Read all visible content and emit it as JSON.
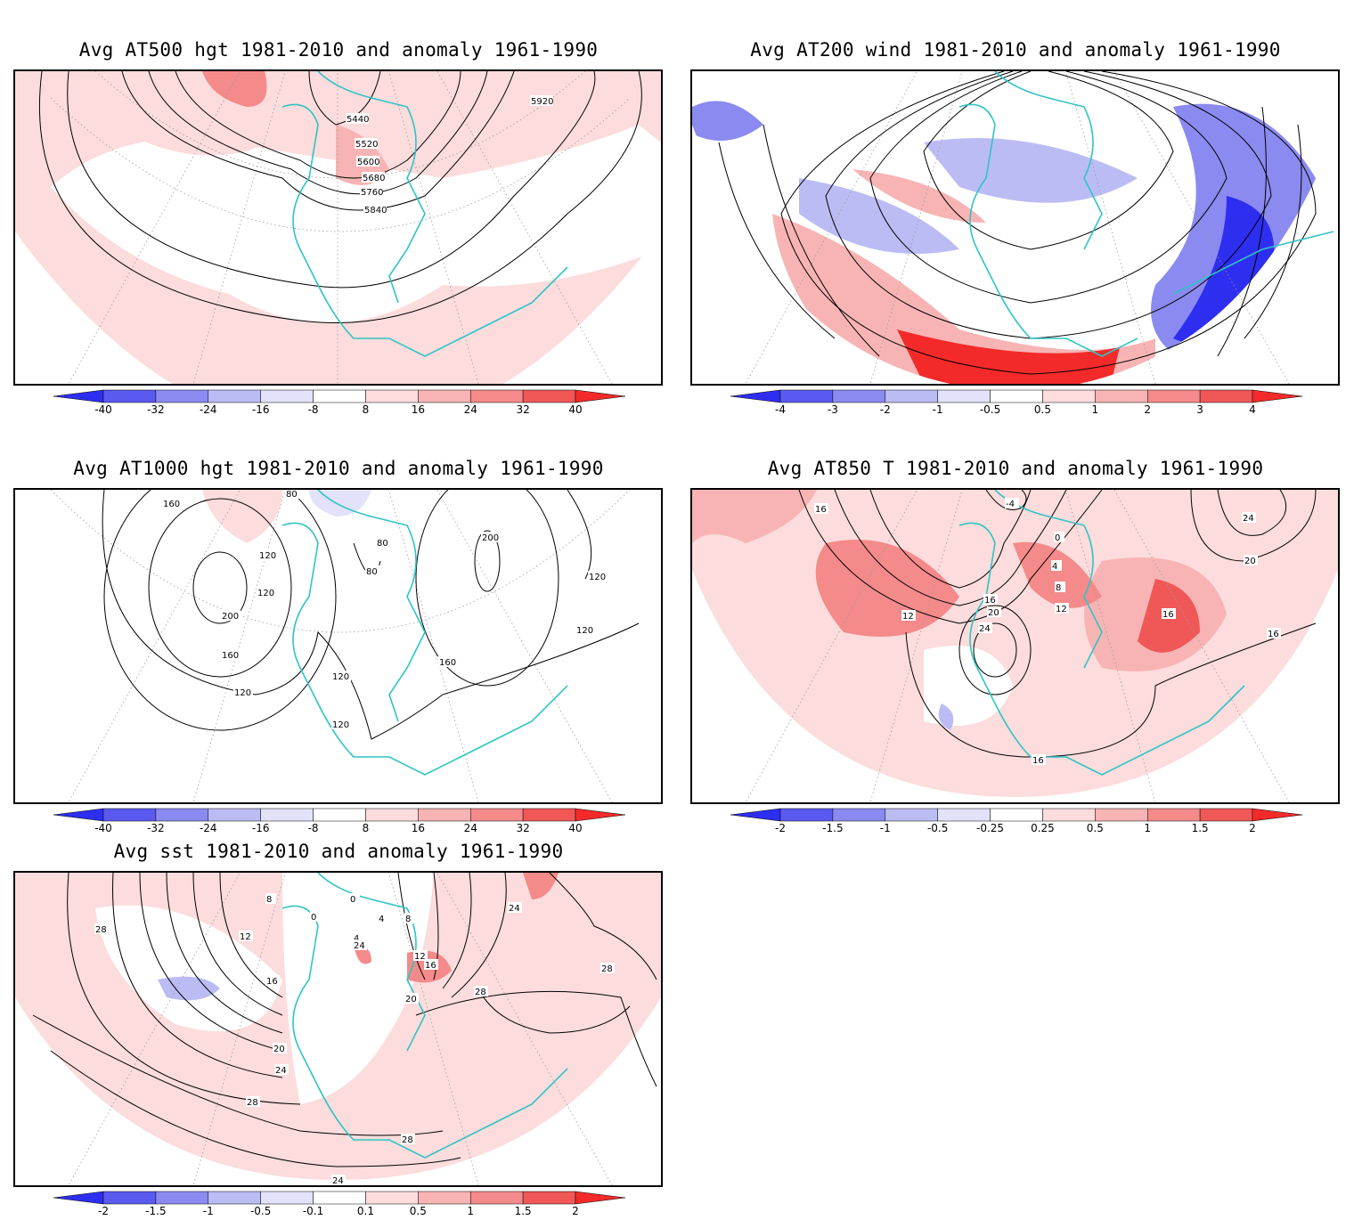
{
  "colors": {
    "neg": [
      "#2e2ef0",
      "#5a5af0",
      "#8a8af0",
      "#bcbcf4",
      "#e2e2fa"
    ],
    "pos": [
      "#fcdcdc",
      "#f8b4b4",
      "#f48a8a",
      "#f05858",
      "#f42a2a"
    ],
    "coast": "#2ec4c4"
  },
  "panels": [
    {
      "id": "at500",
      "title": "Avg AT500 hgt 1981-2010 and anomaly 1961-1990",
      "contour_labels": [
        "5440",
        "5520",
        "5600",
        "5680",
        "5760",
        "5840",
        "5920"
      ],
      "colorbar_labels": [
        "-40",
        "-32",
        "-24",
        "-16",
        "-8",
        "8",
        "16",
        "24",
        "32",
        "40"
      ]
    },
    {
      "id": "at200",
      "title": "Avg AT200 wind 1981-2010 and anomaly 1961-1990",
      "contour_labels": [],
      "colorbar_labels": [
        "-4",
        "-3",
        "-2",
        "-1",
        "-0.5",
        "0.5",
        "1",
        "2",
        "3",
        "4"
      ]
    },
    {
      "id": "at1000",
      "title": "Avg AT1000 hgt 1981-2010 and anomaly 1961-1990",
      "contour_labels": [
        "80",
        "160",
        "200",
        "120",
        "80",
        "80",
        "200",
        "120",
        "120",
        "160",
        "120",
        "160",
        "120",
        "120",
        "120"
      ],
      "colorbar_labels": [
        "-40",
        "-32",
        "-24",
        "-16",
        "-8",
        "8",
        "16",
        "24",
        "32",
        "40"
      ]
    },
    {
      "id": "at850",
      "title": "Avg AT850 T 1981-2010 and anomaly 1961-1990",
      "contour_labels": [
        "16",
        "-4",
        "0",
        "4",
        "8",
        "12",
        "12",
        "16",
        "20",
        "24",
        "16",
        "16",
        "20",
        "24",
        "16"
      ],
      "colorbar_labels": [
        "-2",
        "-1.5",
        "-1",
        "-0.5",
        "-0.25",
        "0.25",
        "0.5",
        "1",
        "1.5",
        "2"
      ]
    },
    {
      "id": "sst",
      "title": "Avg sst 1981-2010 and anomaly 1961-1990",
      "contour_labels": [
        "28",
        "8",
        "12",
        "16",
        "20",
        "24",
        "28",
        "0",
        "0",
        "4",
        "8",
        "4",
        "24",
        "12",
        "16",
        "20",
        "28",
        "28",
        "24",
        "28",
        "24"
      ],
      "colorbar_labels": [
        "-2",
        "-1.5",
        "-1",
        "-0.5",
        "-0.1",
        "0.1",
        "0.5",
        "1",
        "1.5",
        "2"
      ]
    }
  ]
}
